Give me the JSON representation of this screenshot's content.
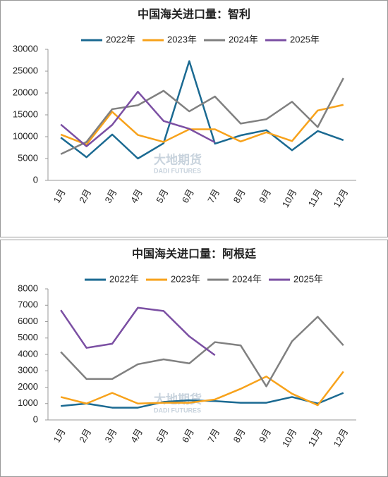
{
  "chart_data": [
    {
      "type": "line",
      "title": "中国海关进口量：智利",
      "watermark": "大地期货",
      "watermark_en": "DADI FUTURES",
      "categories": [
        "1月",
        "2月",
        "3月",
        "4月",
        "5月",
        "6月",
        "7月",
        "8月",
        "9月",
        "10月",
        "11月",
        "12月"
      ],
      "ylim": [
        0,
        30000
      ],
      "yticks": [
        0,
        5000,
        10000,
        15000,
        20000,
        25000,
        30000
      ],
      "grid": false,
      "legend": "top",
      "series": [
        {
          "name": "2022年",
          "color": "#1b6a92",
          "values": [
            9800,
            5300,
            10500,
            5000,
            8500,
            27300,
            8400,
            10300,
            11500,
            6900,
            11300,
            9200
          ]
        },
        {
          "name": "2023年",
          "color": "#f7a21b",
          "values": [
            10500,
            8200,
            15700,
            10400,
            8800,
            11700,
            11700,
            8900,
            11000,
            9000,
            16000,
            17300
          ]
        },
        {
          "name": "2024年",
          "color": "#808080",
          "values": [
            6000,
            8800,
            16300,
            17200,
            20500,
            15800,
            19200,
            13000,
            14000,
            18000,
            12200,
            23400
          ]
        },
        {
          "name": "2025年",
          "color": "#7b4fa3",
          "values": [
            12800,
            7800,
            12700,
            20300,
            13600,
            11800,
            8700,
            null,
            null,
            null,
            null,
            null
          ]
        }
      ]
    },
    {
      "type": "line",
      "title": "中国海关进口量：阿根廷",
      "watermark": "大地期货",
      "watermark_en": "DADI FUTURES",
      "categories": [
        "1月",
        "2月",
        "3月",
        "4月",
        "5月",
        "6月",
        "7月",
        "8月",
        "9月",
        "10月",
        "11月",
        "12月"
      ],
      "ylim": [
        0,
        8000
      ],
      "yticks": [
        0,
        1000,
        2000,
        3000,
        4000,
        5000,
        6000,
        7000,
        8000
      ],
      "grid": false,
      "legend": "top",
      "series": [
        {
          "name": "2022年",
          "color": "#1b6a92",
          "values": [
            850,
            1000,
            750,
            750,
            1100,
            1200,
            1150,
            1050,
            1050,
            1400,
            1000,
            1650
          ]
        },
        {
          "name": "2023年",
          "color": "#f7a21b",
          "values": [
            1400,
            1000,
            1650,
            1000,
            1050,
            1050,
            1250,
            1900,
            2650,
            1600,
            900,
            2950
          ]
        },
        {
          "name": "2024年",
          "color": "#808080",
          "values": [
            4150,
            2500,
            2500,
            3400,
            3700,
            3450,
            4750,
            4550,
            2050,
            4800,
            6300,
            4550
          ]
        },
        {
          "name": "2025年",
          "color": "#7b4fa3",
          "values": [
            6700,
            4400,
            4650,
            6850,
            6650,
            5100,
            3950,
            null,
            null,
            null,
            null,
            null
          ]
        }
      ]
    }
  ]
}
